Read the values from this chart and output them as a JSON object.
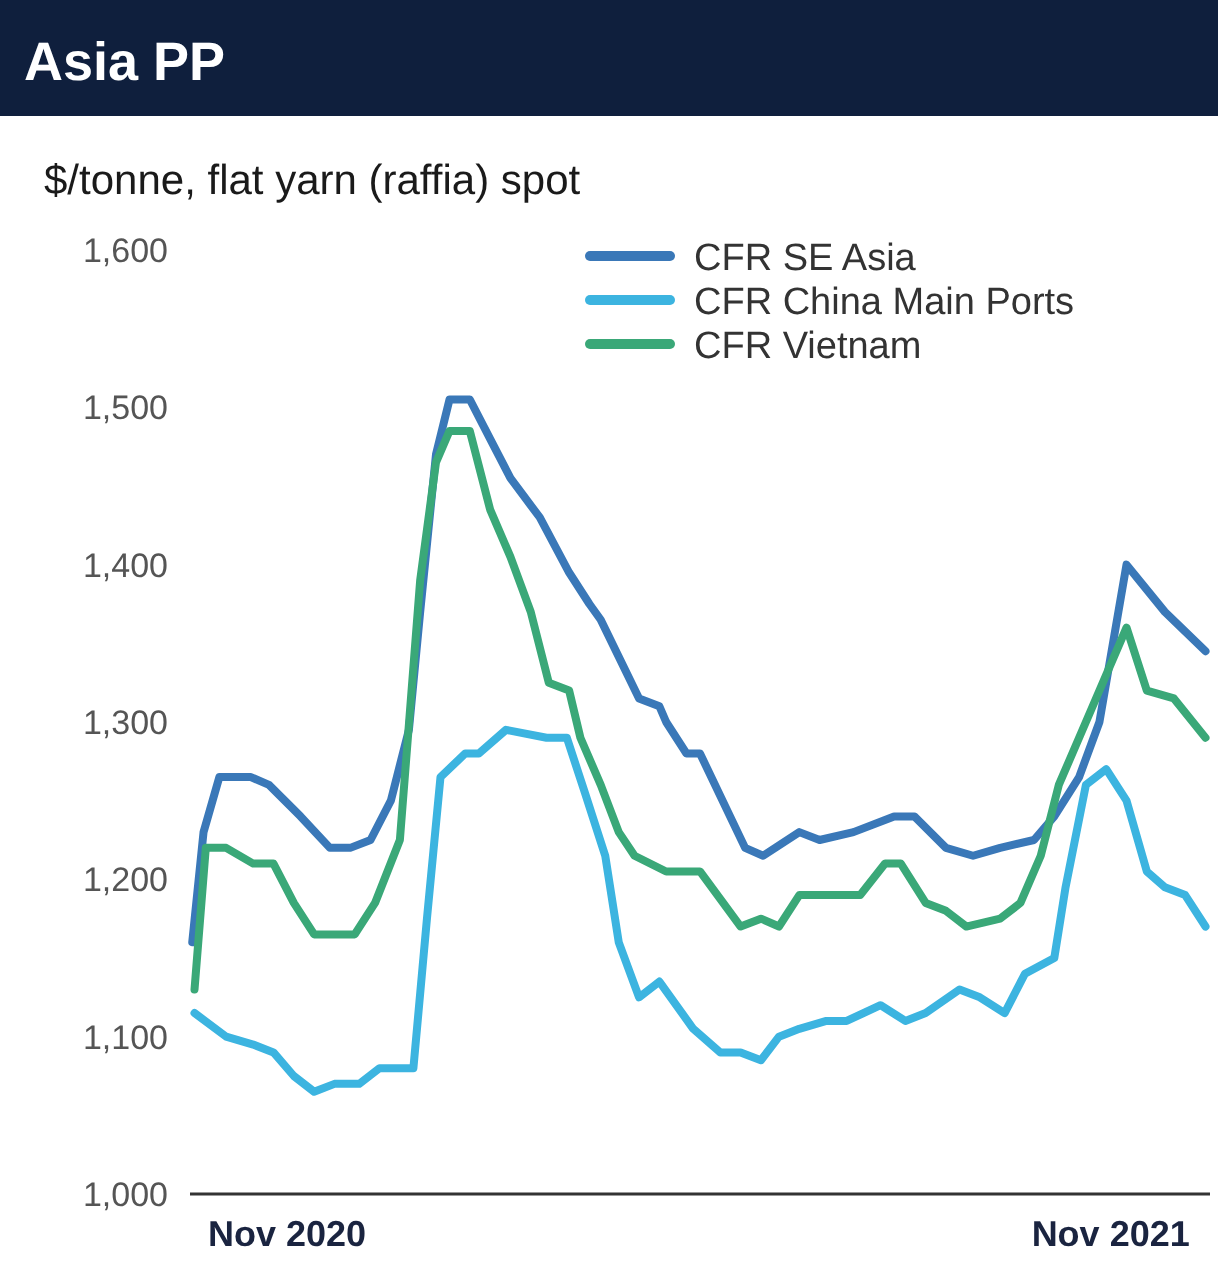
{
  "chart_data": {
    "type": "line",
    "title": "Asia PP",
    "subtitle": "$/tonne, flat yarn (raffia) spot",
    "xlim": [
      "2020-10-03",
      "2021-12-29"
    ],
    "xticks": [
      {
        "value": "2020-11-15",
        "label": "Nov 2020"
      },
      {
        "value": "2021-11-15",
        "label": "Nov 2021"
      }
    ],
    "ylim": [
      1000,
      1600
    ],
    "yticks": [
      {
        "value": 1000,
        "label": "1,000"
      },
      {
        "value": 1100,
        "label": "1,100"
      },
      {
        "value": 1200,
        "label": "1,200"
      },
      {
        "value": 1300,
        "label": "1,300"
      },
      {
        "value": 1400,
        "label": "1,400"
      },
      {
        "value": 1500,
        "label": "1,500"
      },
      {
        "value": 1600,
        "label": "1,600"
      }
    ],
    "grid": false,
    "legend": "top right",
    "marker": "none",
    "line_style": "solid",
    "series": [
      {
        "name": "CFR SE Asia",
        "color": "#3a78b8",
        "x": [
          "2020-10-04",
          "2020-10-09",
          "2020-10-16",
          "2020-10-30",
          "2020-11-07",
          "2020-11-21",
          "2020-12-04",
          "2020-12-13",
          "2020-12-22",
          "2020-12-31",
          "2021-01-08",
          "2021-01-13",
          "2021-01-20",
          "2021-01-26",
          "2021-02-04",
          "2021-02-13",
          "2021-02-22",
          "2021-03-07",
          "2021-03-20",
          "2021-03-29",
          "2021-04-03",
          "2021-04-20",
          "2021-04-29",
          "2021-05-02",
          "2021-05-11",
          "2021-05-17",
          "2021-06-06",
          "2021-06-14",
          "2021-06-30",
          "2021-07-09",
          "2021-07-24",
          "2021-08-11",
          "2021-08-20",
          "2021-09-03",
          "2021-09-15",
          "2021-09-27",
          "2021-10-12",
          "2021-10-21",
          "2021-11-01",
          "2021-11-10",
          "2021-11-22",
          "2021-12-09",
          "2021-12-27"
        ],
        "values": [
          1160,
          1230,
          1265,
          1265,
          1260,
          1240,
          1220,
          1220,
          1225,
          1250,
          1295,
          1370,
          1470,
          1505,
          1505,
          1480,
          1455,
          1430,
          1395,
          1375,
          1365,
          1315,
          1310,
          1300,
          1280,
          1280,
          1220,
          1215,
          1230,
          1225,
          1230,
          1240,
          1240,
          1220,
          1215,
          1220,
          1225,
          1240,
          1265,
          1300,
          1400,
          1370,
          1345
        ]
      },
      {
        "name": "CFR China Main Ports",
        "color": "#3cb4e0",
        "x": [
          "2020-10-05",
          "2020-10-19",
          "2020-10-31",
          "2020-11-09",
          "2020-11-18",
          "2020-11-27",
          "2020-12-06",
          "2020-12-17",
          "2020-12-26",
          "2021-01-10",
          "2021-01-16",
          "2021-01-22",
          "2021-02-02",
          "2021-02-08",
          "2021-02-20",
          "2021-03-10",
          "2021-03-19",
          "2021-03-27",
          "2021-04-05",
          "2021-04-11",
          "2021-04-20",
          "2021-04-29",
          "2021-05-14",
          "2021-05-26",
          "2021-06-04",
          "2021-06-13",
          "2021-06-21",
          "2021-06-30",
          "2021-07-12",
          "2021-07-21",
          "2021-08-05",
          "2021-08-16",
          "2021-08-25",
          "2021-09-09",
          "2021-09-18",
          "2021-09-29",
          "2021-10-08",
          "2021-10-21",
          "2021-10-26",
          "2021-11-04",
          "2021-11-13",
          "2021-11-22",
          "2021-12-01",
          "2021-12-09",
          "2021-12-18",
          "2021-12-27"
        ],
        "values": [
          1115,
          1100,
          1095,
          1090,
          1075,
          1065,
          1070,
          1070,
          1080,
          1080,
          1175,
          1265,
          1280,
          1280,
          1295,
          1290,
          1290,
          1255,
          1215,
          1160,
          1125,
          1135,
          1105,
          1090,
          1090,
          1085,
          1100,
          1105,
          1110,
          1110,
          1120,
          1110,
          1115,
          1130,
          1125,
          1115,
          1140,
          1150,
          1195,
          1260,
          1270,
          1250,
          1205,
          1195,
          1190,
          1170
        ]
      },
      {
        "name": "CFR Vietnam",
        "color": "#3aa878",
        "x": [
          "2020-10-05",
          "2020-10-10",
          "2020-10-19",
          "2020-10-31",
          "2020-11-09",
          "2020-11-18",
          "2020-11-27",
          "2020-12-15",
          "2020-12-24",
          "2021-01-04",
          "2021-01-13",
          "2021-01-20",
          "2021-01-26",
          "2021-02-04",
          "2021-02-13",
          "2021-02-22",
          "2021-03-03",
          "2021-03-11",
          "2021-03-20",
          "2021-03-25",
          "2021-04-03",
          "2021-04-11",
          "2021-04-18",
          "2021-05-02",
          "2021-05-17",
          "2021-06-04",
          "2021-06-13",
          "2021-06-21",
          "2021-06-30",
          "2021-07-27",
          "2021-08-07",
          "2021-08-14",
          "2021-08-25",
          "2021-09-03",
          "2021-09-12",
          "2021-09-27",
          "2021-10-06",
          "2021-10-15",
          "2021-10-23",
          "2021-11-04",
          "2021-11-22",
          "2021-12-01",
          "2021-12-13",
          "2021-12-27"
        ],
        "values": [
          1130,
          1220,
          1220,
          1210,
          1210,
          1185,
          1165,
          1165,
          1185,
          1225,
          1390,
          1465,
          1485,
          1485,
          1435,
          1405,
          1370,
          1325,
          1320,
          1290,
          1260,
          1230,
          1215,
          1205,
          1205,
          1170,
          1175,
          1170,
          1190,
          1190,
          1210,
          1210,
          1185,
          1180,
          1170,
          1175,
          1185,
          1215,
          1260,
          1300,
          1360,
          1320,
          1315,
          1290
        ]
      }
    ]
  }
}
